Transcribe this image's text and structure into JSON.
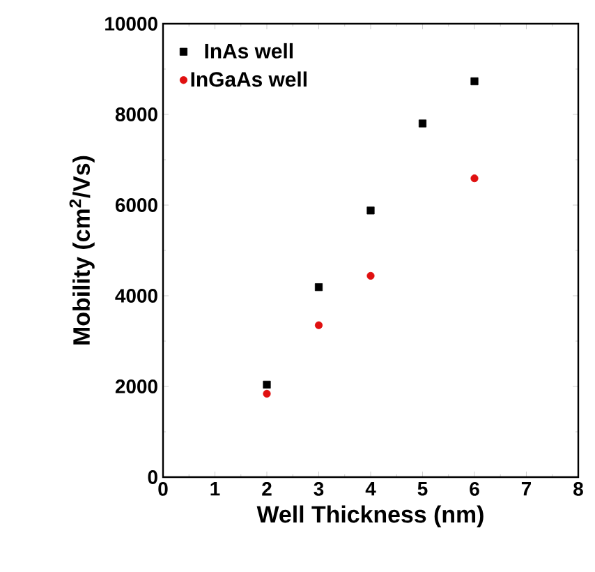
{
  "chart_data": {
    "type": "scatter",
    "xlabel": "Well Thickness (nm)",
    "ylabel": "Mobility (cm$^{2}$/Vs)",
    "xlim": [
      0,
      8
    ],
    "xticks": [
      0,
      1,
      2,
      3,
      4,
      5,
      6,
      7,
      8
    ],
    "ylim": [
      0,
      10000
    ],
    "yticks": [
      0,
      2000,
      4000,
      6000,
      8000,
      10000
    ],
    "legend": "top left",
    "grid": false,
    "series": [
      {
        "name": "InAs well",
        "color": "#000000",
        "marker": "square",
        "x": [
          2,
          3,
          4,
          5,
          6
        ],
        "values": [
          2040,
          4190,
          5880,
          7800,
          8730
        ]
      },
      {
        "name": "InGaAs well",
        "color": "#e01010",
        "marker": "circle",
        "x": [
          2,
          3,
          4,
          6
        ],
        "values": [
          1840,
          3350,
          4440,
          6590
        ]
      }
    ]
  }
}
